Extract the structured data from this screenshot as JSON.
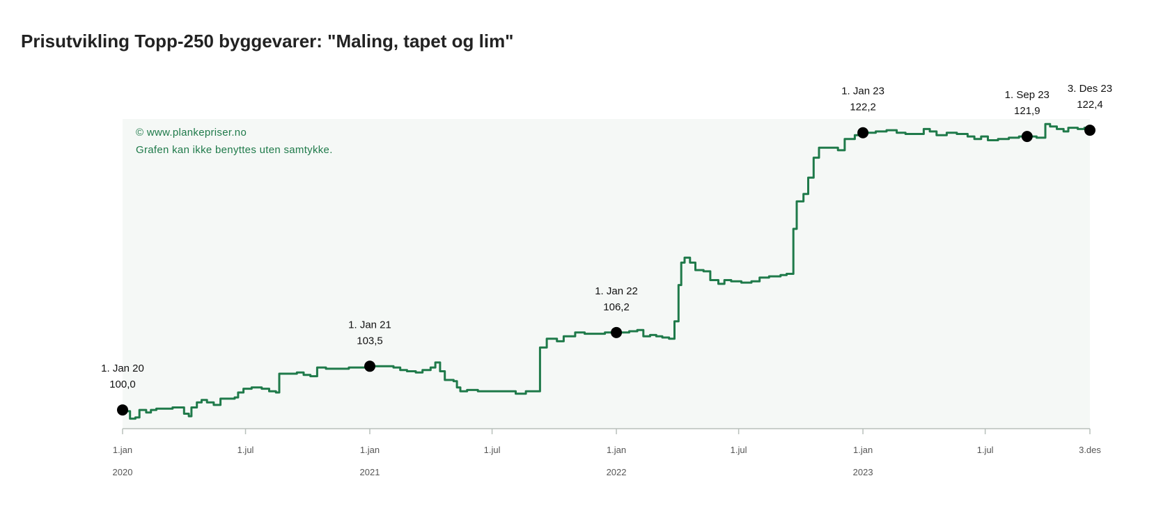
{
  "title": "Prisutvikling Topp-250 byggevarer: \"Maling, tapet og lim\"",
  "colors": {
    "line": "#1f7a4a",
    "plot_bg": "#f5f8f6",
    "marker": "#000000",
    "credit": "#1f7a4a"
  },
  "chart_data": {
    "type": "line",
    "title": "Prisutvikling Topp-250 byggevarer: \"Maling, tapet og lim\"",
    "xlabel": "",
    "ylabel": "",
    "x_range": [
      "2020-01-01",
      "2023-12-03"
    ],
    "y_range": [
      98.5,
      123.3
    ],
    "grid": false,
    "credit_lines": [
      "© www.plankepriser.no",
      "Grafen kan ikke benyttes uten samtykke."
    ],
    "x_ticks": [
      {
        "date": "2020-01-01",
        "label": "1.jan",
        "year": "2020"
      },
      {
        "date": "2020-07-01",
        "label": "1.jul",
        "year": ""
      },
      {
        "date": "2021-01-01",
        "label": "1.jan",
        "year": "2021"
      },
      {
        "date": "2021-07-01",
        "label": "1.jul",
        "year": ""
      },
      {
        "date": "2022-01-01",
        "label": "1.jan",
        "year": "2022"
      },
      {
        "date": "2022-07-01",
        "label": "1.jul",
        "year": ""
      },
      {
        "date": "2023-01-01",
        "label": "1.jan",
        "year": "2023"
      },
      {
        "date": "2023-07-01",
        "label": "1.jul",
        "year": ""
      },
      {
        "date": "2023-12-03",
        "label": "3.des",
        "year": ""
      }
    ],
    "highlights": [
      {
        "date": "2020-01-01",
        "label": "1. Jan 20",
        "value": "100,0",
        "y": 100.0
      },
      {
        "date": "2021-01-01",
        "label": "1. Jan 21",
        "value": "103,5",
        "y": 103.5
      },
      {
        "date": "2022-01-01",
        "label": "1. Jan 22",
        "value": "106,2",
        "y": 106.2
      },
      {
        "date": "2023-01-01",
        "label": "1. Jan 23",
        "value": "122,2",
        "y": 122.2
      },
      {
        "date": "2023-09-01",
        "label": "1. Sep 23",
        "value": "121,9",
        "y": 121.9
      },
      {
        "date": "2023-12-03",
        "label": "3. Des 23",
        "value": "122,4",
        "y": 122.4
      }
    ],
    "series": [
      {
        "points": [
          [
            "2020-01-01",
            100.0
          ],
          [
            "2020-01-07",
            99.9
          ],
          [
            "2020-01-12",
            99.3
          ],
          [
            "2020-01-20",
            99.4
          ],
          [
            "2020-01-26",
            100.0
          ],
          [
            "2020-02-05",
            99.8
          ],
          [
            "2020-02-12",
            100.0
          ],
          [
            "2020-02-20",
            100.1
          ],
          [
            "2020-03-05",
            100.1
          ],
          [
            "2020-03-15",
            100.2
          ],
          [
            "2020-03-25",
            100.2
          ],
          [
            "2020-04-01",
            99.7
          ],
          [
            "2020-04-08",
            99.5
          ],
          [
            "2020-04-12",
            100.2
          ],
          [
            "2020-04-20",
            100.6
          ],
          [
            "2020-04-27",
            100.8
          ],
          [
            "2020-05-05",
            100.6
          ],
          [
            "2020-05-15",
            100.4
          ],
          [
            "2020-05-25",
            100.9
          ],
          [
            "2020-06-05",
            100.9
          ],
          [
            "2020-06-15",
            101.0
          ],
          [
            "2020-06-20",
            101.4
          ],
          [
            "2020-06-28",
            101.7
          ],
          [
            "2020-07-10",
            101.8
          ],
          [
            "2020-07-25",
            101.7
          ],
          [
            "2020-08-05",
            101.5
          ],
          [
            "2020-08-15",
            101.4
          ],
          [
            "2020-08-20",
            102.9
          ],
          [
            "2020-09-05",
            102.9
          ],
          [
            "2020-09-15",
            103.0
          ],
          [
            "2020-09-25",
            102.8
          ],
          [
            "2020-10-05",
            102.7
          ],
          [
            "2020-10-15",
            103.4
          ],
          [
            "2020-10-28",
            103.3
          ],
          [
            "2020-11-15",
            103.3
          ],
          [
            "2020-12-01",
            103.4
          ],
          [
            "2020-12-15",
            103.4
          ],
          [
            "2021-01-01",
            103.5
          ],
          [
            "2021-01-20",
            103.5
          ],
          [
            "2021-02-05",
            103.4
          ],
          [
            "2021-02-15",
            103.2
          ],
          [
            "2021-02-25",
            103.1
          ],
          [
            "2021-03-10",
            103.0
          ],
          [
            "2021-03-20",
            103.2
          ],
          [
            "2021-04-01",
            103.4
          ],
          [
            "2021-04-08",
            103.8
          ],
          [
            "2021-04-15",
            103.1
          ],
          [
            "2021-04-22",
            102.4
          ],
          [
            "2021-05-05",
            102.3
          ],
          [
            "2021-05-10",
            101.8
          ],
          [
            "2021-05-15",
            101.5
          ],
          [
            "2021-05-25",
            101.6
          ],
          [
            "2021-06-10",
            101.5
          ],
          [
            "2021-07-05",
            101.5
          ],
          [
            "2021-07-20",
            101.5
          ],
          [
            "2021-08-05",
            101.3
          ],
          [
            "2021-08-20",
            101.5
          ],
          [
            "2021-09-01",
            101.5
          ],
          [
            "2021-09-10",
            105.0
          ],
          [
            "2021-09-20",
            105.7
          ],
          [
            "2021-10-05",
            105.5
          ],
          [
            "2021-10-15",
            105.9
          ],
          [
            "2021-11-01",
            106.2
          ],
          [
            "2021-11-15",
            106.1
          ],
          [
            "2021-12-15",
            106.2
          ],
          [
            "2022-01-01",
            106.2
          ],
          [
            "2022-01-20",
            106.3
          ],
          [
            "2022-02-01",
            106.4
          ],
          [
            "2022-02-10",
            105.9
          ],
          [
            "2022-02-20",
            106.0
          ],
          [
            "2022-03-01",
            105.9
          ],
          [
            "2022-03-10",
            105.8
          ],
          [
            "2022-03-20",
            105.7
          ],
          [
            "2022-03-28",
            107.1
          ],
          [
            "2022-04-03",
            110.0
          ],
          [
            "2022-04-07",
            111.8
          ],
          [
            "2022-04-12",
            112.2
          ],
          [
            "2022-04-20",
            111.8
          ],
          [
            "2022-04-28",
            111.2
          ],
          [
            "2022-05-10",
            111.1
          ],
          [
            "2022-05-20",
            110.4
          ],
          [
            "2022-06-01",
            110.1
          ],
          [
            "2022-06-10",
            110.4
          ],
          [
            "2022-06-20",
            110.3
          ],
          [
            "2022-07-05",
            110.2
          ],
          [
            "2022-07-20",
            110.3
          ],
          [
            "2022-08-01",
            110.6
          ],
          [
            "2022-08-15",
            110.7
          ],
          [
            "2022-09-01",
            110.8
          ],
          [
            "2022-09-10",
            110.9
          ],
          [
            "2022-09-20",
            114.5
          ],
          [
            "2022-09-25",
            116.7
          ],
          [
            "2022-10-05",
            117.3
          ],
          [
            "2022-10-12",
            118.6
          ],
          [
            "2022-10-20",
            120.2
          ],
          [
            "2022-10-28",
            121.0
          ],
          [
            "2022-11-10",
            121.0
          ],
          [
            "2022-11-25",
            120.8
          ],
          [
            "2022-12-05",
            121.7
          ],
          [
            "2022-12-20",
            122.0
          ],
          [
            "2023-01-01",
            122.2
          ],
          [
            "2023-01-20",
            122.3
          ],
          [
            "2023-02-05",
            122.4
          ],
          [
            "2023-02-20",
            122.2
          ],
          [
            "2023-03-05",
            122.1
          ],
          [
            "2023-03-20",
            122.1
          ],
          [
            "2023-04-01",
            122.5
          ],
          [
            "2023-04-10",
            122.3
          ],
          [
            "2023-04-20",
            122.0
          ],
          [
            "2023-05-05",
            122.2
          ],
          [
            "2023-05-20",
            122.1
          ],
          [
            "2023-06-05",
            121.9
          ],
          [
            "2023-06-15",
            121.7
          ],
          [
            "2023-06-25",
            121.9
          ],
          [
            "2023-07-05",
            121.6
          ],
          [
            "2023-07-20",
            121.7
          ],
          [
            "2023-08-05",
            121.8
          ],
          [
            "2023-08-20",
            121.9
          ],
          [
            "2023-09-01",
            121.9
          ],
          [
            "2023-09-15",
            121.8
          ],
          [
            "2023-09-28",
            122.9
          ],
          [
            "2023-10-05",
            122.7
          ],
          [
            "2023-10-15",
            122.5
          ],
          [
            "2023-10-25",
            122.3
          ],
          [
            "2023-11-01",
            122.6
          ],
          [
            "2023-11-15",
            122.5
          ],
          [
            "2023-11-25",
            122.6
          ],
          [
            "2023-12-03",
            122.4
          ]
        ]
      }
    ]
  }
}
